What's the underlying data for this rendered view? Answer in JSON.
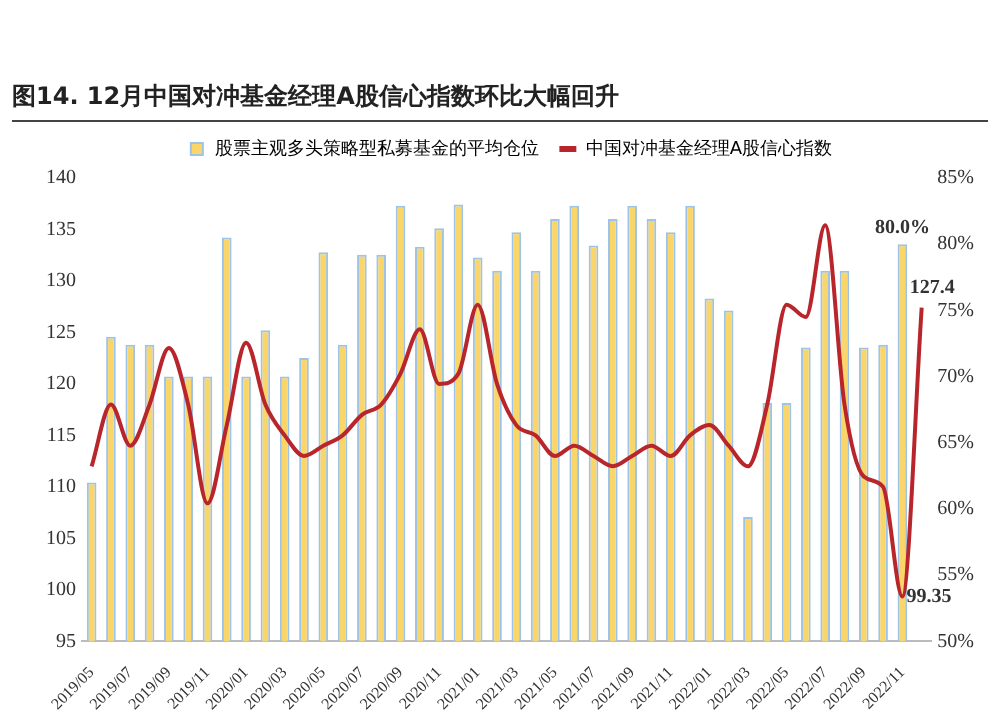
{
  "chart_data": {
    "type": "bar",
    "title": "图14. 12月中国对冲基金经理A股信心指数环比大幅回升",
    "categories": [
      "2019/05",
      null,
      "2019/07",
      null,
      "2019/09",
      null,
      "2019/11",
      null,
      "2020/01",
      null,
      "2020/03",
      null,
      "2020/05",
      null,
      "2020/07",
      null,
      "2020/09",
      null,
      "2020/11",
      null,
      "2021/01",
      null,
      "2021/03",
      null,
      "2021/05",
      null,
      "2021/07",
      null,
      "2021/09",
      null,
      "2021/11",
      null,
      "2022/01",
      null,
      "2022/03",
      null,
      "2022/05",
      null,
      "2022/07",
      null,
      "2022/09",
      null,
      "2022/11",
      null
    ],
    "series": [
      {
        "name": "股票主观多头策略型私募基金的平均仓位",
        "axis": "y2",
        "color": "#fad56a",
        "values": [
          62,
          73,
          72.4,
          72.4,
          70,
          70,
          70,
          80.5,
          70,
          73.5,
          70,
          71.4,
          79.4,
          72.4,
          79.2,
          79.2,
          82.9,
          79.8,
          81.2,
          83,
          79,
          78,
          80.9,
          78,
          81.9,
          82.9,
          79.9,
          81.9,
          82.9,
          81.9,
          80.9,
          82.9,
          75.9,
          75,
          59.4,
          68,
          68,
          72.2,
          78,
          78,
          72.2,
          72.4,
          80,
          null
        ],
        "value_labels": [
          null,
          null,
          null,
          null,
          null,
          null,
          null,
          null,
          null,
          null,
          null,
          null,
          null,
          null,
          null,
          null,
          null,
          null,
          null,
          null,
          null,
          null,
          null,
          null,
          null,
          null,
          null,
          null,
          null,
          null,
          null,
          null,
          null,
          null,
          null,
          null,
          null,
          null,
          null,
          null,
          null,
          null,
          "80.0%",
          null
        ]
      },
      {
        "name": "中国对冲基金经理A股信心指数",
        "type": "line",
        "axis": "y",
        "color": "#b8262c",
        "values": [
          112,
          118,
          114,
          118,
          123.5,
          118,
          108.4,
          116,
          124,
          118,
          115,
          113,
          114,
          115,
          117,
          118,
          121,
          125.3,
          120,
          121,
          127.7,
          120,
          116,
          115,
          113,
          114,
          113,
          112,
          113,
          114,
          113,
          115,
          116,
          114,
          112,
          118,
          127.7,
          126.5,
          135.4,
          118,
          111,
          110,
          99.35,
          127.4
        ],
        "value_labels": [
          null,
          null,
          null,
          null,
          null,
          null,
          null,
          null,
          null,
          null,
          null,
          null,
          null,
          null,
          null,
          null,
          null,
          null,
          null,
          null,
          null,
          null,
          null,
          null,
          null,
          null,
          null,
          null,
          null,
          null,
          null,
          null,
          null,
          null,
          null,
          null,
          null,
          null,
          null,
          null,
          null,
          null,
          "99.35",
          "127.4"
        ]
      }
    ],
    "ylim": [
      95,
      140
    ],
    "yticks": [
      95,
      100,
      105,
      110,
      115,
      120,
      125,
      130,
      135,
      140
    ],
    "y2lim": [
      50,
      85
    ],
    "y2ticks": [
      {
        "value": 50,
        "label": "50%"
      },
      {
        "value": 55,
        "label": "55%"
      },
      {
        "value": 60,
        "label": "60%"
      },
      {
        "value": 65,
        "label": "65%"
      },
      {
        "value": 70,
        "label": "70%"
      },
      {
        "value": 75,
        "label": "75%"
      },
      {
        "value": 80,
        "label": "80%"
      },
      {
        "value": 85,
        "label": "85%"
      }
    ],
    "grid": false,
    "legend": "top"
  }
}
